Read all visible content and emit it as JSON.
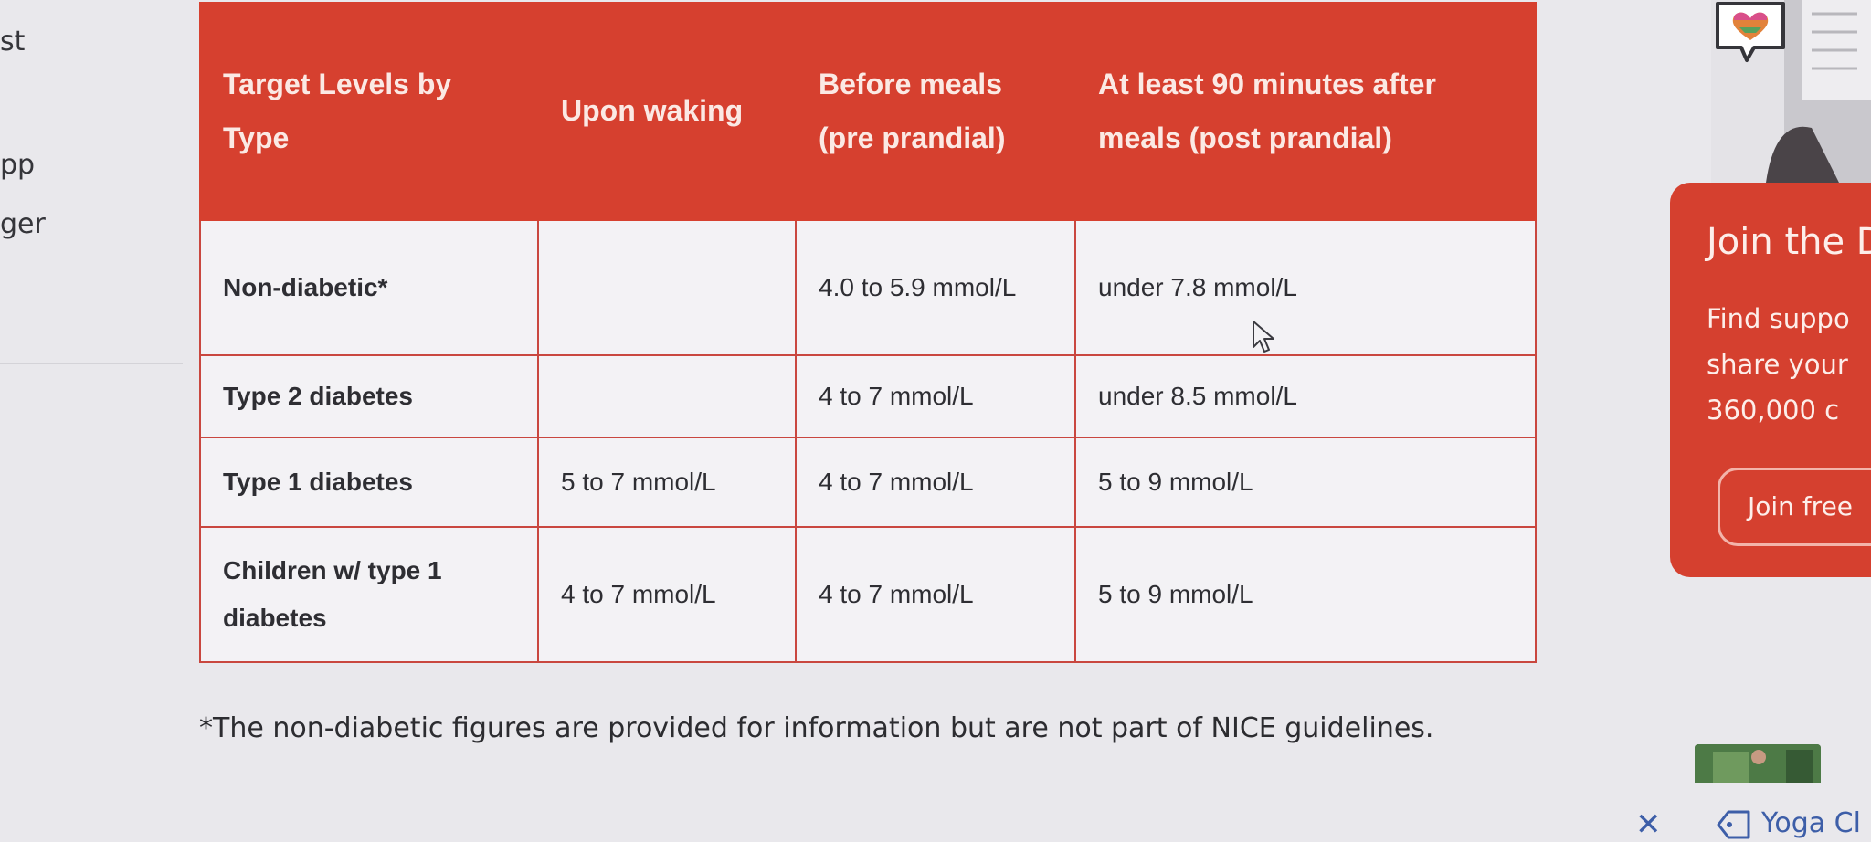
{
  "left_fragments": [
    "st",
    "pp",
    "ger"
  ],
  "table": {
    "headers": [
      "Target Levels by Type",
      "Upon waking",
      "Before meals (pre prandial)",
      "At least 90 minutes after meals (post prandial)"
    ],
    "rows": [
      {
        "type": "Non-diabetic*",
        "waking": "",
        "before": "4.0 to 5.9 mmol/L",
        "after": "under 7.8 mmol/L"
      },
      {
        "type": "Type 2 diabetes",
        "waking": "",
        "before": "4 to 7 mmol/L",
        "after": "under 8.5 mmol/L"
      },
      {
        "type": "Type 1 diabetes",
        "waking": "5 to 7 mmol/L",
        "before": "4 to 7 mmol/L",
        "after": "5 to 9 mmol/L"
      },
      {
        "type": "Children w/ type 1 diabetes",
        "waking": "4 to 7 mmol/L",
        "before": "4 to 7 mmol/L",
        "after": "5 to 9 mmol/L"
      }
    ]
  },
  "footnote": "*The non-diabetic figures are provided for information but are not part of NICE guidelines.",
  "sidebar": {
    "join_title": "Join the D",
    "join_text": [
      "Find suppo",
      "share your",
      "360,000 c"
    ],
    "join_button": "Join free",
    "tag_label": "Yoga Cl"
  },
  "colors": {
    "brand_red": "#d6402f",
    "cell_bg": "#f3f2f5",
    "link_blue": "#3d5ea8"
  },
  "icons": [
    "cursor-arrow-icon",
    "heart-bubble-icon",
    "close-icon",
    "tag-icon"
  ]
}
